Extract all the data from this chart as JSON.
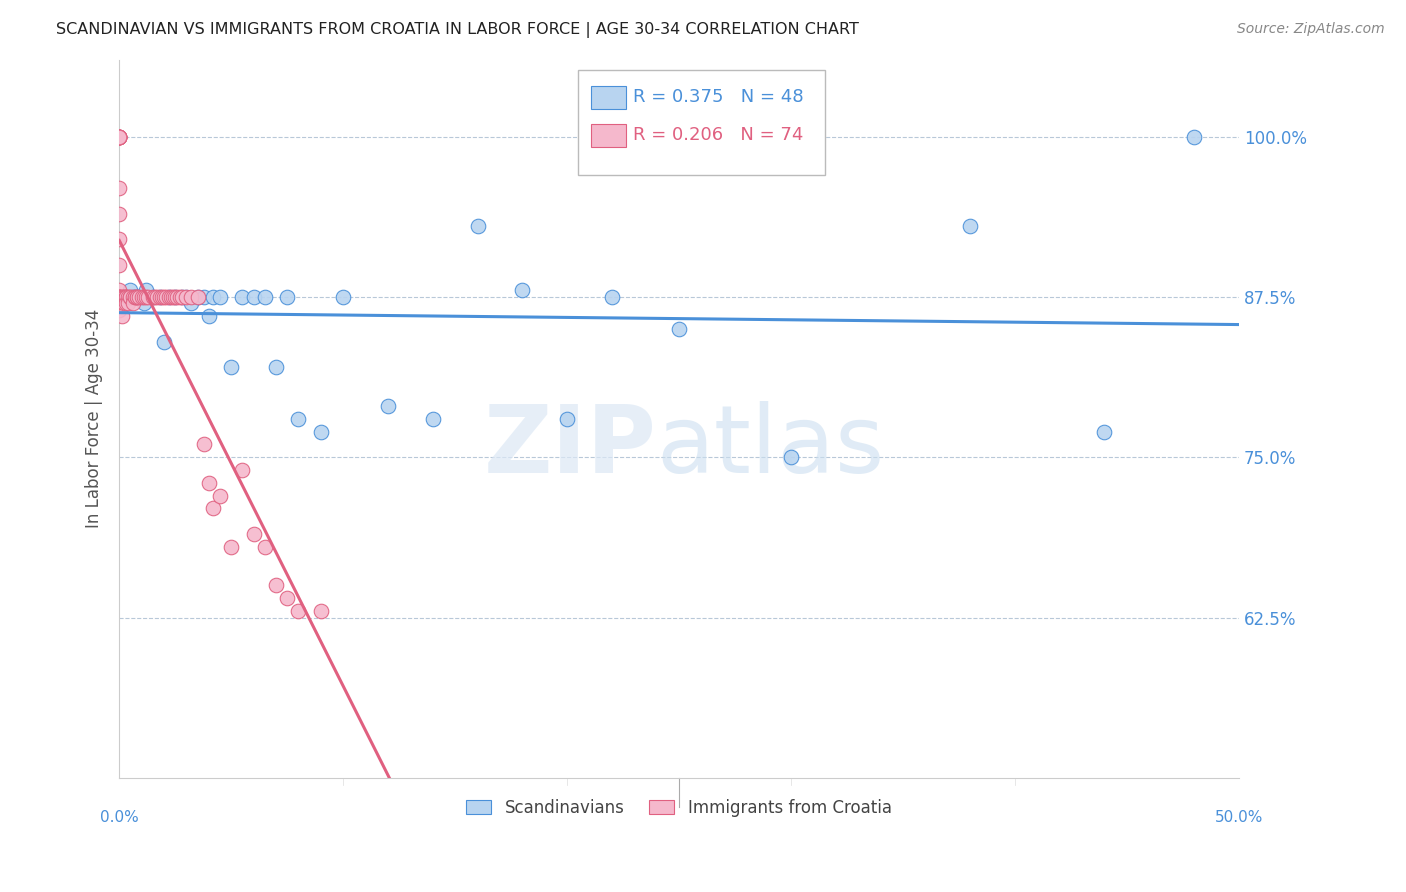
{
  "title": "SCANDINAVIAN VS IMMIGRANTS FROM CROATIA IN LABOR FORCE | AGE 30-34 CORRELATION CHART",
  "source": "Source: ZipAtlas.com",
  "ylabel": "In Labor Force | Age 30-34",
  "ytick_labels": [
    "100.0%",
    "87.5%",
    "75.0%",
    "62.5%"
  ],
  "ytick_values": [
    1.0,
    0.875,
    0.75,
    0.625
  ],
  "xmin": 0.0,
  "xmax": 0.5,
  "ymin": 0.5,
  "ymax": 1.06,
  "legend_blue_r": "R = 0.375",
  "legend_blue_n": "N = 48",
  "legend_pink_r": "R = 0.206",
  "legend_pink_n": "N = 74",
  "blue_color": "#b8d4f0",
  "blue_line_color": "#4a90d9",
  "pink_color": "#f5b8cc",
  "pink_line_color": "#e06080",
  "blue_scatter_x": [
    0.0,
    0.0,
    0.001,
    0.002,
    0.003,
    0.003,
    0.004,
    0.005,
    0.006,
    0.007,
    0.008,
    0.009,
    0.01,
    0.011,
    0.012,
    0.015,
    0.018,
    0.02,
    0.022,
    0.025,
    0.028,
    0.03,
    0.032,
    0.035,
    0.038,
    0.04,
    0.042,
    0.045,
    0.05,
    0.055,
    0.06,
    0.065,
    0.07,
    0.075,
    0.08,
    0.09,
    0.1,
    0.12,
    0.14,
    0.16,
    0.18,
    0.2,
    0.22,
    0.25,
    0.3,
    0.38,
    0.44,
    0.48
  ],
  "blue_scatter_y": [
    0.875,
    0.87,
    0.875,
    0.87,
    0.875,
    0.87,
    0.875,
    0.88,
    0.875,
    0.875,
    0.875,
    0.875,
    0.875,
    0.87,
    0.88,
    0.875,
    0.875,
    0.84,
    0.875,
    0.875,
    0.875,
    0.875,
    0.87,
    0.875,
    0.875,
    0.86,
    0.875,
    0.875,
    0.82,
    0.875,
    0.875,
    0.875,
    0.82,
    0.875,
    0.78,
    0.77,
    0.875,
    0.79,
    0.78,
    0.93,
    0.88,
    0.78,
    0.875,
    0.85,
    0.75,
    0.93,
    0.77,
    1.0
  ],
  "pink_scatter_x": [
    0.0,
    0.0,
    0.0,
    0.0,
    0.0,
    0.0,
    0.0,
    0.0,
    0.0,
    0.0,
    0.0,
    0.0,
    0.0,
    0.0,
    0.0,
    0.0,
    0.0,
    0.0,
    0.0,
    0.001,
    0.001,
    0.001,
    0.001,
    0.002,
    0.002,
    0.002,
    0.003,
    0.003,
    0.003,
    0.003,
    0.004,
    0.004,
    0.005,
    0.005,
    0.006,
    0.006,
    0.007,
    0.007,
    0.008,
    0.008,
    0.009,
    0.01,
    0.011,
    0.012,
    0.013,
    0.015,
    0.016,
    0.017,
    0.018,
    0.019,
    0.02,
    0.021,
    0.022,
    0.023,
    0.024,
    0.025,
    0.026,
    0.027,
    0.028,
    0.03,
    0.032,
    0.035,
    0.038,
    0.04,
    0.042,
    0.045,
    0.05,
    0.055,
    0.06,
    0.065,
    0.07,
    0.075,
    0.08,
    0.09
  ],
  "pink_scatter_y": [
    1.0,
    1.0,
    1.0,
    1.0,
    1.0,
    1.0,
    1.0,
    1.0,
    0.96,
    0.94,
    0.92,
    0.9,
    0.88,
    0.875,
    0.875,
    0.875,
    0.875,
    0.87,
    0.865,
    0.875,
    0.875,
    0.87,
    0.86,
    0.875,
    0.875,
    0.87,
    0.875,
    0.875,
    0.875,
    0.87,
    0.875,
    0.87,
    0.875,
    0.875,
    0.875,
    0.87,
    0.875,
    0.875,
    0.875,
    0.875,
    0.875,
    0.875,
    0.875,
    0.875,
    0.875,
    0.875,
    0.875,
    0.875,
    0.875,
    0.875,
    0.875,
    0.875,
    0.875,
    0.875,
    0.875,
    0.875,
    0.875,
    0.875,
    0.875,
    0.875,
    0.875,
    0.875,
    0.76,
    0.73,
    0.71,
    0.72,
    0.68,
    0.74,
    0.69,
    0.68,
    0.65,
    0.64,
    0.63,
    0.63
  ]
}
